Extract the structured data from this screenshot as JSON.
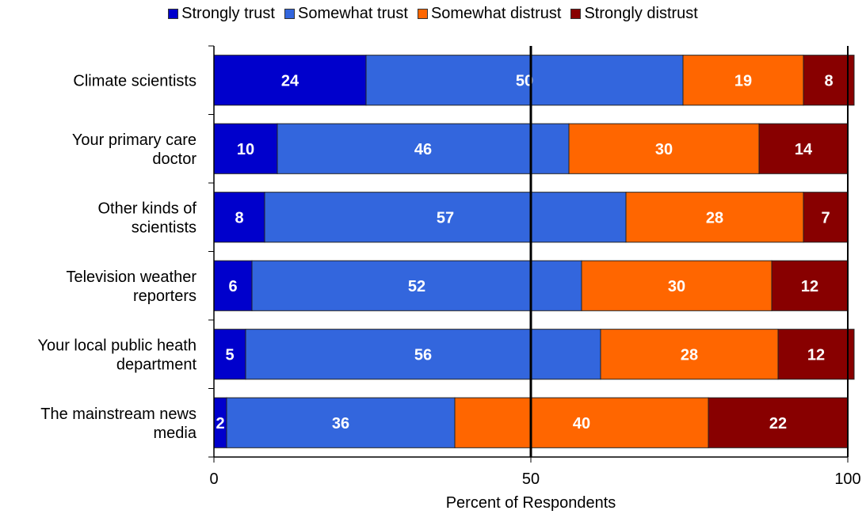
{
  "chart_data": {
    "type": "bar",
    "orientation": "horizontal",
    "stacked": true,
    "title": "",
    "xlabel": "Percent of Respondents",
    "ylabel": "",
    "xlim": [
      0,
      100
    ],
    "x_ticks": [
      "0",
      "50",
      "100"
    ],
    "legend_position": "top",
    "categories": [
      [
        "Climate scientists"
      ],
      [
        "Your primary care",
        "doctor"
      ],
      [
        "Other kinds of",
        "scientists"
      ],
      [
        "Television weather",
        "reporters"
      ],
      [
        "Your local public heath",
        "department"
      ],
      [
        "The mainstream news",
        "media"
      ]
    ],
    "series": [
      {
        "name": "Strongly trust",
        "color": "#0000CC",
        "values": [
          24,
          10,
          8,
          6,
          5,
          2
        ]
      },
      {
        "name": "Somewhat trust",
        "color": "#3366DD",
        "values": [
          50,
          46,
          57,
          52,
          56,
          36
        ]
      },
      {
        "name": "Somewhat distrust",
        "color": "#FF6600",
        "values": [
          19,
          30,
          28,
          30,
          28,
          40
        ]
      },
      {
        "name": "Strongly distrust",
        "color": "#880000",
        "values": [
          8,
          14,
          7,
          12,
          12,
          22
        ]
      }
    ]
  }
}
